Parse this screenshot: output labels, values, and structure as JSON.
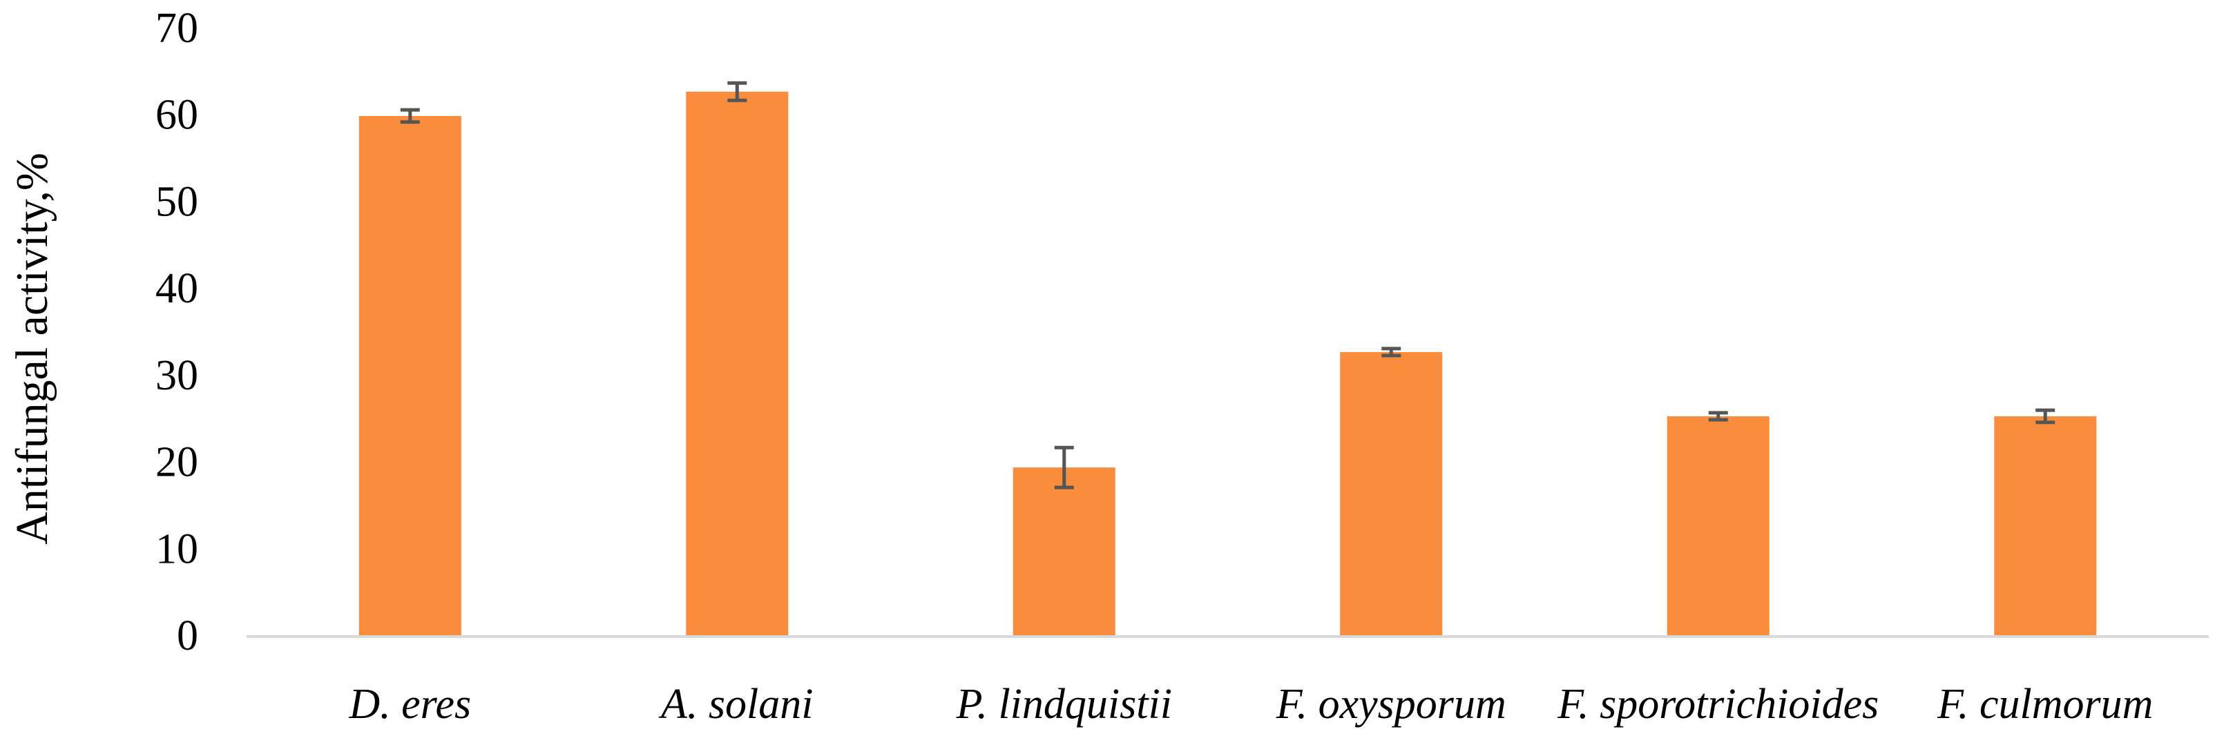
{
  "chart_data": {
    "type": "bar",
    "title": "",
    "xlabel": "",
    "ylabel": "Antifungal activity,%",
    "categories": [
      "D. eres",
      "A. solani",
      "P. lindquistii",
      "F. oxysporum",
      "F. sporotrichioides",
      "F. culmorum"
    ],
    "series": [
      {
        "values": [
          59.9,
          62.7,
          19.4,
          32.7,
          25.3,
          25.3
        ],
        "error": [
          0.7,
          1.0,
          2.3,
          0.4,
          0.4,
          0.7
        ],
        "color": "#F98D3D"
      }
    ],
    "ylim": [
      0,
      70
    ],
    "yticks": [
      "0",
      "10",
      "20",
      "30",
      "40",
      "50",
      "60",
      "70"
    ],
    "grid": false,
    "legend": "none",
    "colors": {
      "bar": "#F98D3D",
      "error_bar": "#555555",
      "axis": "#D9D9D9"
    }
  }
}
